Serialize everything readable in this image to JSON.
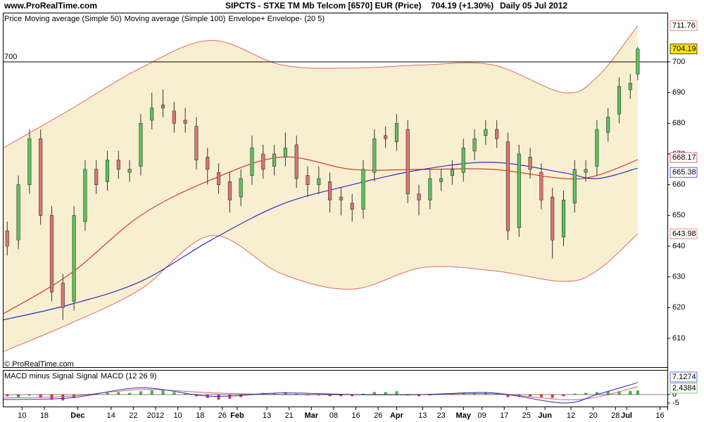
{
  "page": {
    "site": "www.ProRealTime.com",
    "copyright": "© ProRealTime.com",
    "title": "SIPCTS - STXE TM Mb Telcom [6570] EUR (Price)",
    "change": "704.19 (+1.30%)",
    "period": "Daily  05 Jul 2012"
  },
  "chart_data": [
    {
      "type": "candlestick",
      "xlim": [
        -20,
        159
      ],
      "ylim": [
        600.6,
        715.8
      ],
      "yticks": [
        610,
        620,
        630,
        640,
        650,
        660,
        670,
        680,
        690,
        700
      ],
      "xticks": [
        {
          "value": -15,
          "label": "10"
        },
        {
          "value": -9,
          "label": "18"
        },
        {
          "value": 0,
          "label": "Dec"
        },
        {
          "value": 9,
          "label": "14"
        },
        {
          "value": 15,
          "label": "22"
        },
        {
          "value": 21,
          "label": "2012"
        },
        {
          "value": 27,
          "label": "10"
        },
        {
          "value": 33,
          "label": "18"
        },
        {
          "value": 39,
          "label": "26"
        },
        {
          "value": 43,
          "label": "Feb"
        },
        {
          "value": 51,
          "label": "13"
        },
        {
          "value": 57,
          "label": "21"
        },
        {
          "value": 63,
          "label": "Mar"
        },
        {
          "value": 69,
          "label": "08"
        },
        {
          "value": 75,
          "label": "16"
        },
        {
          "value": 81,
          "label": "26"
        },
        {
          "value": 86,
          "label": "Apr"
        },
        {
          "value": 93,
          "label": "13"
        },
        {
          "value": 98,
          "label": "23"
        },
        {
          "value": 104,
          "label": "May"
        },
        {
          "value": 109,
          "label": "09"
        },
        {
          "value": 115,
          "label": "17"
        },
        {
          "value": 121,
          "label": "25"
        },
        {
          "value": 126,
          "label": "Jun"
        },
        {
          "value": 133,
          "label": "12"
        },
        {
          "value": 139,
          "label": "20"
        },
        {
          "value": 145,
          "label": "28"
        },
        {
          "value": 148,
          "label": "Jul"
        },
        {
          "value": 157,
          "label": "16"
        }
      ],
      "hline": 700,
      "candles": {
        "name": "Price",
        "up_color": "#5cc15c",
        "down_color": "#e07272",
        "x": [
          -19,
          -16,
          -13,
          -10,
          -7,
          -4,
          -1,
          2,
          5,
          8,
          11,
          14,
          17,
          20,
          23,
          26,
          29,
          32,
          35,
          38,
          41,
          44,
          47,
          50,
          53,
          56,
          59,
          62,
          65,
          68,
          71,
          74,
          77,
          80,
          83,
          86,
          89,
          92,
          95,
          98,
          101,
          104,
          107,
          110,
          113,
          116,
          119,
          122,
          125,
          128,
          131,
          134,
          137,
          140,
          143,
          146,
          149,
          151
        ],
        "open": [
          645,
          642,
          660,
          675,
          650,
          628,
          622,
          648,
          665,
          661,
          668,
          664,
          666,
          681,
          686,
          684,
          681,
          679,
          669,
          664,
          661,
          656,
          663,
          670,
          666,
          669,
          673,
          663,
          660,
          661,
          656,
          654,
          652,
          664,
          676,
          674,
          678,
          657,
          655,
          661,
          663,
          664,
          671,
          676,
          678,
          674,
          646,
          669,
          664,
          656,
          643,
          654,
          664,
          666,
          677,
          683,
          691,
          696
        ],
        "high": [
          648,
          663,
          678,
          678,
          653,
          631,
          653,
          668,
          668,
          671,
          671,
          668,
          683,
          690,
          691,
          687,
          685,
          682,
          672,
          667,
          664,
          665,
          676,
          673,
          673,
          677,
          676,
          666,
          666,
          664,
          659,
          657,
          668,
          678,
          679,
          683,
          681,
          660,
          665,
          665,
          668,
          675,
          678,
          681,
          681,
          677,
          673,
          672,
          667,
          659,
          658,
          668,
          668,
          681,
          685,
          695,
          696,
          705
        ],
        "low": [
          637,
          639,
          657,
          647,
          622,
          616,
          619,
          645,
          657,
          658,
          662,
          661,
          663,
          678,
          682,
          677,
          677,
          665,
          660,
          657,
          651,
          653,
          660,
          662,
          663,
          666,
          659,
          656,
          657,
          651,
          650,
          648,
          649,
          661,
          672,
          671,
          654,
          650,
          652,
          658,
          660,
          661,
          668,
          673,
          672,
          642,
          643,
          662,
          652,
          636,
          640,
          651,
          661,
          663,
          674,
          680,
          688,
          694
        ],
        "close": [
          640,
          660,
          675,
          650,
          625,
          620,
          650,
          665,
          660,
          668,
          665,
          665,
          680,
          685,
          685,
          680,
          680,
          668,
          665,
          660,
          655,
          662,
          672,
          665,
          670,
          672,
          662,
          660,
          662,
          655,
          655,
          652,
          665,
          675,
          675,
          680,
          657,
          655,
          662,
          662,
          665,
          672,
          675,
          678,
          675,
          645,
          670,
          665,
          655,
          642,
          655,
          665,
          665,
          678,
          682,
          692,
          693,
          704.19
        ]
      },
      "line_x": [
        -20,
        -2,
        17,
        36,
        55,
        74,
        93,
        112,
        131,
        140,
        151
      ],
      "series": [
        {
          "name": "Moving average (Simple 50)",
          "color": "#d42a22",
          "values": [
            618,
            631,
            650,
            661.6,
            669,
            665,
            665,
            665,
            662,
            663,
            668.17
          ]
        },
        {
          "name": "Moving average (Simple 100)",
          "color": "#1a1ac4",
          "values": [
            616,
            621,
            628.5,
            642,
            653.6,
            660,
            665,
            667.3,
            663.9,
            662,
            665.38
          ]
        }
      ],
      "envelope": {
        "name": "Envelope+ Envelope- (20 5)",
        "color": "#e06a6a",
        "fill": "#f7efcf",
        "upper": [
          672,
          684.5,
          698,
          707,
          699,
          698,
          699,
          699,
          690,
          695,
          711.76
        ],
        "lower": [
          605.7,
          614.8,
          626,
          643.4,
          631,
          626,
          633,
          632,
          628.5,
          632,
          643.98
        ]
      }
    },
    {
      "type": "macd",
      "xlim": [
        -20,
        159
      ],
      "ylim": [
        -7.1,
        14.2
      ],
      "yticks": [
        0,
        -5
      ],
      "histogram": {
        "name": "MACD minus Signal",
        "up_color": "#3cb83c",
        "down_color": "#d83a3a",
        "values": [
          -1,
          -1.5,
          -0.5,
          -2,
          -3,
          -3.5,
          -2,
          -0.5,
          0.5,
          1,
          1.5,
          1,
          2,
          2.5,
          2.5,
          1.5,
          0.5,
          -1,
          -2,
          -3,
          -2.5,
          -1.5,
          0.5,
          1,
          1,
          1.5,
          0.5,
          -0.5,
          -0.5,
          -1,
          -1,
          -1,
          0.5,
          1.5,
          1.5,
          2,
          -0.5,
          -1,
          -0.5,
          0,
          0.5,
          1,
          1,
          1.5,
          1,
          -1.5,
          -1,
          -1,
          -1.5,
          -2,
          -1,
          0.5,
          1,
          1.5,
          2,
          2,
          2.2,
          2.4384
        ]
      },
      "series": [
        {
          "name": "Signal",
          "color": "#e05a6a",
          "values": [
            -2,
            -1,
            3,
            1,
            0,
            0,
            0,
            0.5,
            -3,
            -1.5,
            4.689
          ]
        },
        {
          "name": "MACD (12 26 9)",
          "color": "#2a2ad0",
          "values": [
            -3,
            -2,
            4,
            -1,
            1,
            0,
            0,
            1,
            -5,
            0,
            7.1274
          ]
        }
      ]
    }
  ]
}
